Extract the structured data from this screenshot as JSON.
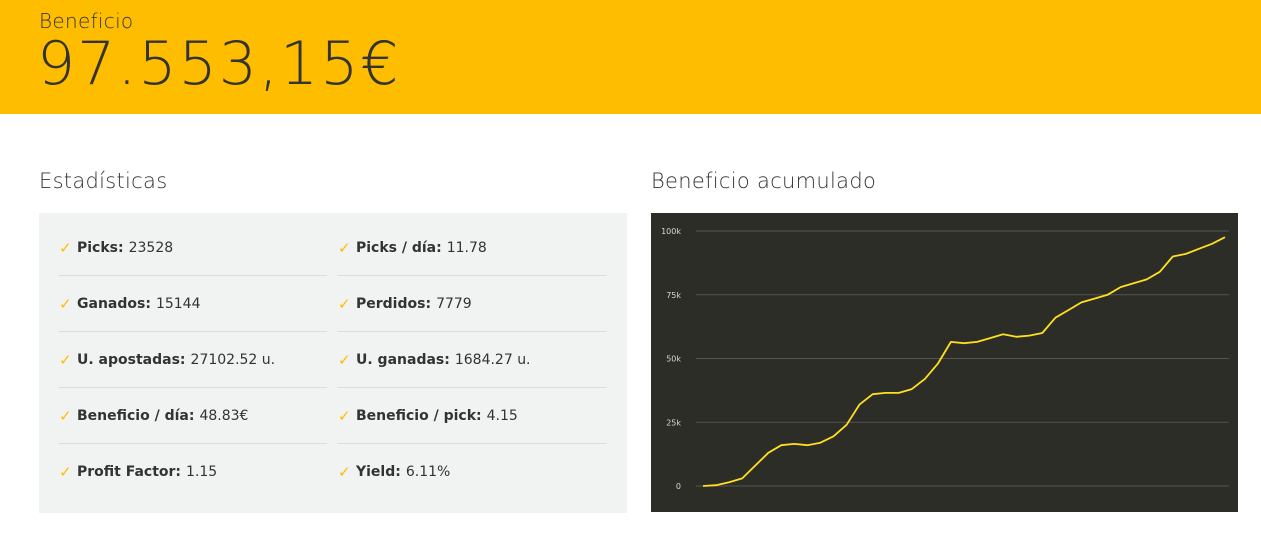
{
  "header": {
    "label": "Beneficio",
    "value": "97.553,15€"
  },
  "stats": {
    "title": "Estadísticas",
    "items": [
      {
        "key": "Picks:",
        "value": "23528"
      },
      {
        "key": "Picks / día:",
        "value": "11.78"
      },
      {
        "key": "Ganados:",
        "value": "15144"
      },
      {
        "key": "Perdidos:",
        "value": "7779"
      },
      {
        "key": "U. apostadas:",
        "value": "27102.52 u."
      },
      {
        "key": "U. ganadas:",
        "value": "1684.27 u."
      },
      {
        "key": "Beneficio / día:",
        "value": "48.83€"
      },
      {
        "key": "Beneficio / pick:",
        "value": "4.15"
      },
      {
        "key": "Profit Factor:",
        "value": "1.15"
      },
      {
        "key": "Yield:",
        "value": "6.11%"
      }
    ]
  },
  "chart": {
    "title": "Beneficio acumulado"
  },
  "colors": {
    "accent": "#ffbd00",
    "chart_background": "#2d2d28",
    "line": "#ffe020",
    "stats_background": "#f1f2f2"
  },
  "chart_data": {
    "type": "line",
    "title": "",
    "xlabel": "",
    "ylabel": "",
    "ylim": [
      0,
      100000
    ],
    "yticks": [
      0,
      25000,
      50000,
      75000,
      100000
    ],
    "ytick_labels": [
      "0",
      "25k",
      "50k",
      "75k",
      "100k"
    ],
    "grid": true,
    "legend": "none",
    "series": [
      {
        "values": [
          0,
          300,
          1500,
          3000,
          8000,
          13000,
          16000,
          16500,
          16000,
          17000,
          19500,
          24000,
          32000,
          36000,
          36500,
          36500,
          38000,
          42000,
          48000,
          56500,
          56000,
          56500,
          58000,
          59500,
          58500,
          59000,
          60000,
          66000,
          69000,
          72000,
          73500,
          75000,
          78000,
          79500,
          81000,
          84000,
          90000,
          91000,
          93000,
          95000,
          97553
        ]
      }
    ]
  }
}
